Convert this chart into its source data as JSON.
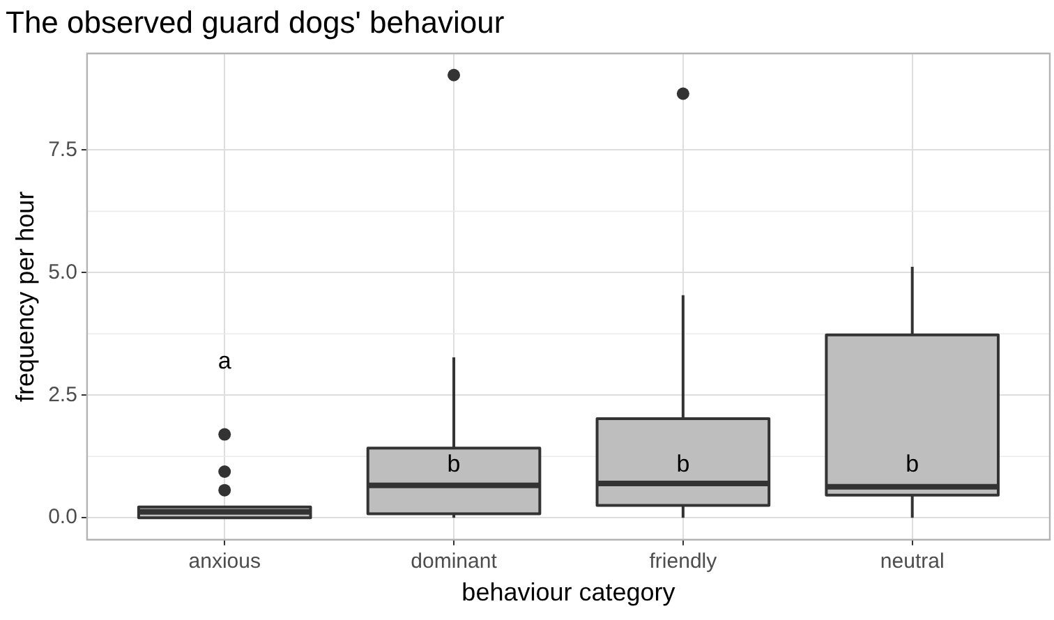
{
  "chart_data": {
    "type": "box",
    "title": "The observed guard dogs' behaviour",
    "xlabel": "behaviour category",
    "ylabel": "frequency per hour",
    "categories": [
      "anxious",
      "dominant",
      "friendly",
      "neutral"
    ],
    "color": "#bebebe",
    "boxes": [
      {
        "low": 0,
        "q1": 0,
        "median": 0.12,
        "q3": 0.22,
        "high": 0.22,
        "outliers": [
          1.7,
          0.94,
          0.56
        ]
      },
      {
        "low": 0,
        "q1": 0.08,
        "median": 0.66,
        "q3": 1.42,
        "high": 3.27,
        "outliers": [
          9.03
        ]
      },
      {
        "low": 0,
        "q1": 0.25,
        "median": 0.7,
        "q3": 2.02,
        "high": 4.54,
        "outliers": [
          8.65
        ]
      },
      {
        "low": 0,
        "q1": 0.46,
        "median": 0.63,
        "q3": 3.73,
        "high": 5.12
      }
    ],
    "ylim": [
      -0.45,
      9.47
    ],
    "yticks": [
      {
        "value": 0,
        "label": "0.0"
      },
      {
        "value": 2.5,
        "label": "2.5"
      },
      {
        "value": 5,
        "label": "5.0"
      },
      {
        "value": 7.5,
        "label": "7.5"
      }
    ],
    "grid": true,
    "annotations": [
      "a",
      "b",
      "b",
      "b"
    ]
  }
}
